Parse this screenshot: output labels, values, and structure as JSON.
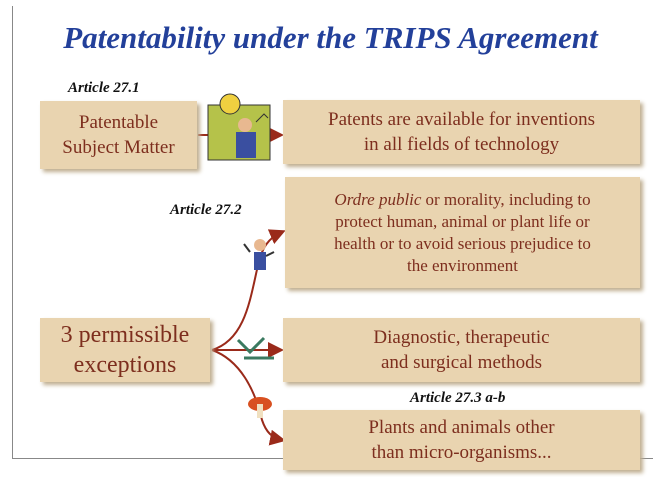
{
  "title": "Patentability under the TRIPS Agreement",
  "article_labels": [
    "Article 27.1",
    "Article 27.2",
    "Article 27.3 a-b"
  ],
  "nodes": [
    {
      "lines": [
        "Patentable",
        "Subject Matter"
      ]
    },
    {
      "lines": [
        "Patents are available for inventions",
        "in all fields of technology"
      ]
    },
    {
      "emphasis": "Ordre public",
      "lines": [
        "or morality, including to",
        "protect human, animal or plant life or",
        "health or to avoid serious prejudice to",
        "the environment"
      ]
    },
    {
      "lines": [
        "3 permissible",
        "exceptions"
      ]
    },
    {
      "lines": [
        "Diagnostic, therapeutic",
        "and surgical methods"
      ]
    },
    {
      "lines": [
        "Plants and animals other",
        "than micro-organisms..."
      ]
    }
  ]
}
